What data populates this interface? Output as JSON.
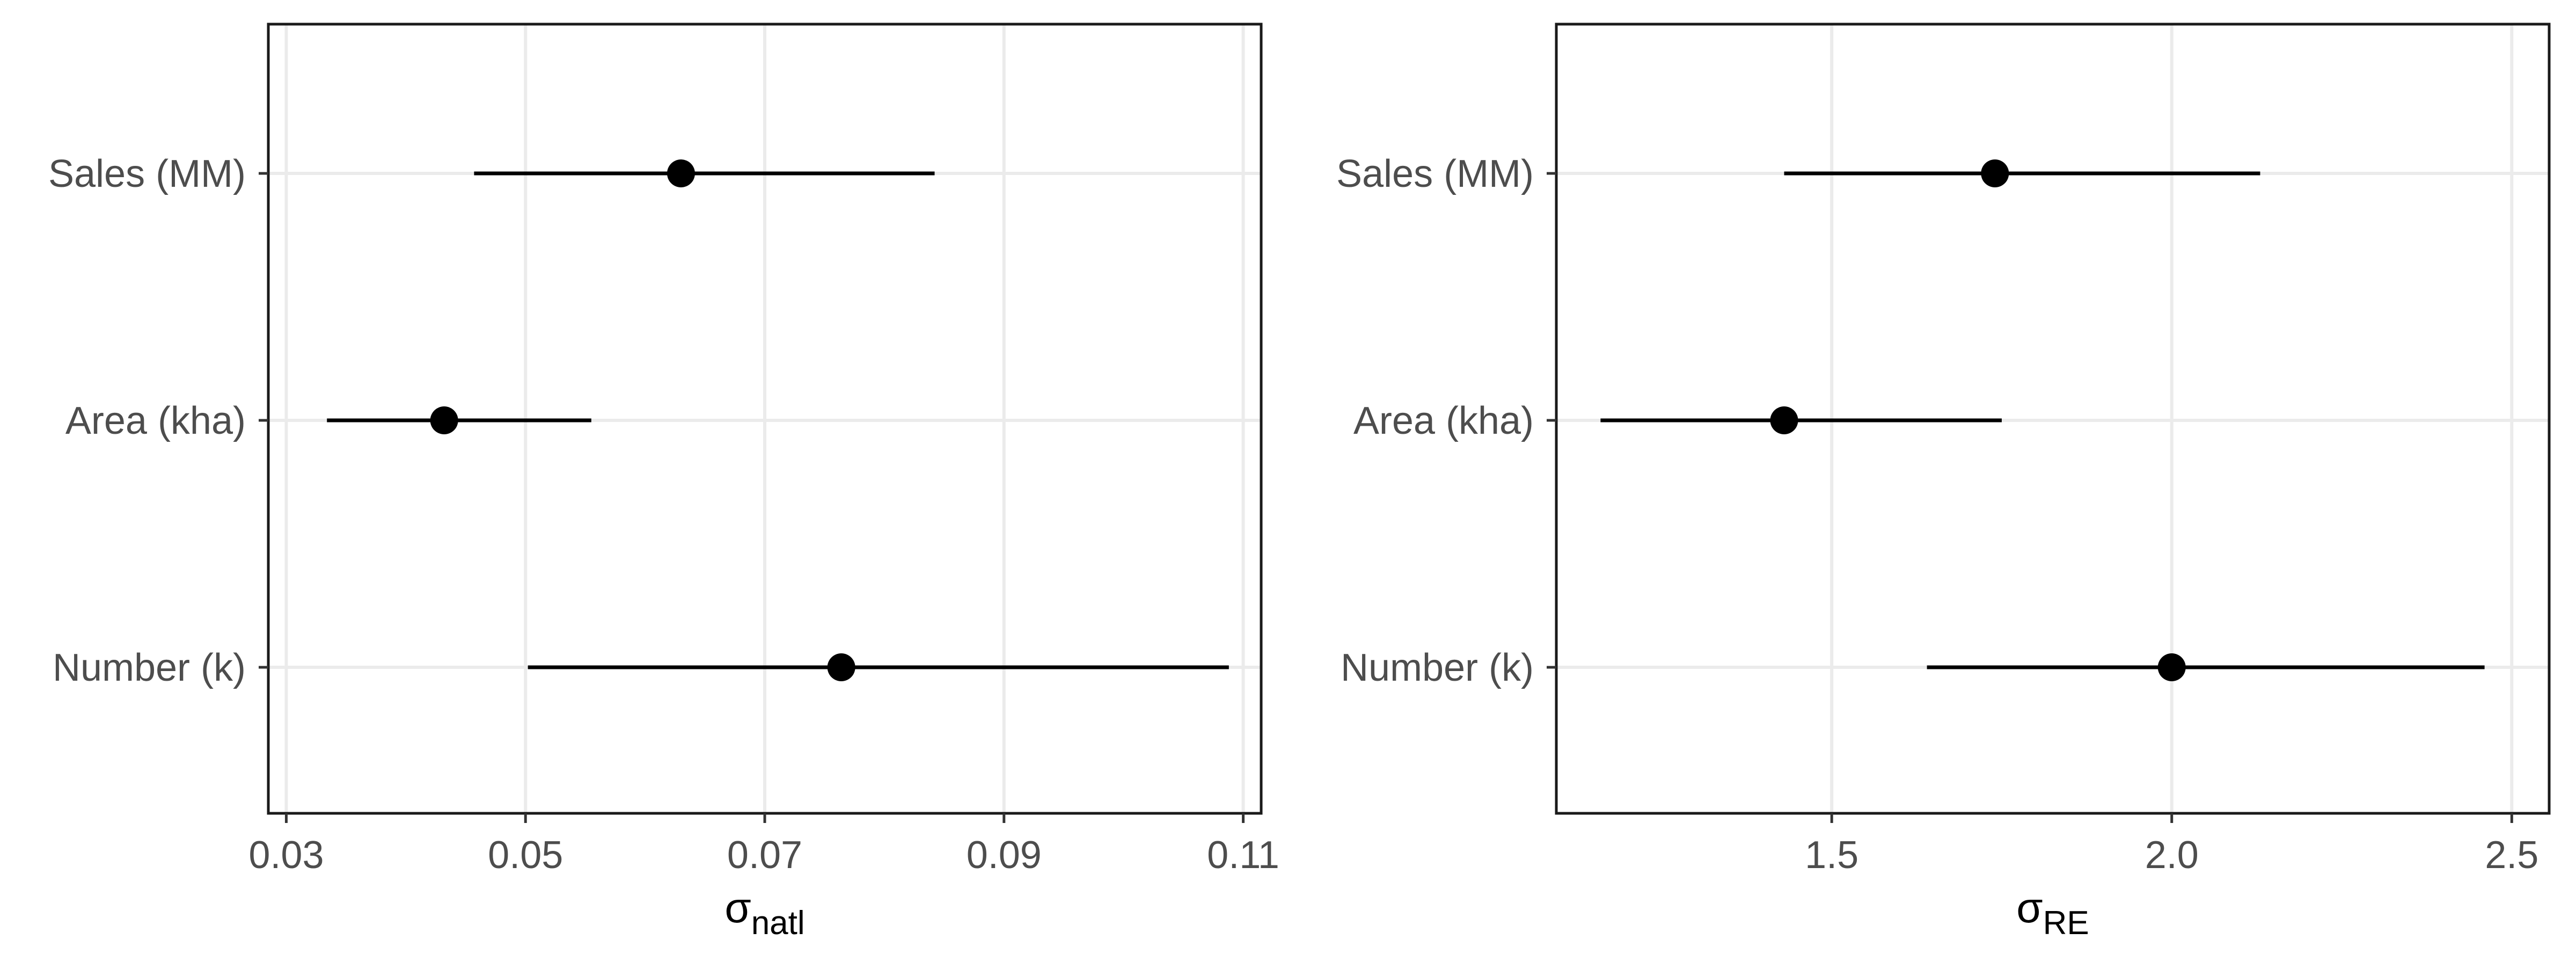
{
  "chart_data": [
    {
      "type": "scatter",
      "subtype": "point-range",
      "title": "",
      "xlabel": "σ",
      "xlabel_subscript": "natl",
      "ylabel": "",
      "xlim": [
        0.0285,
        0.1115
      ],
      "x_ticks": [
        0.03,
        0.05,
        0.07,
        0.09,
        0.11
      ],
      "x_tick_labels": [
        "0.03",
        "0.05",
        "0.07",
        "0.09",
        "0.11"
      ],
      "categories": [
        "Sales (MM)",
        "Area (kha)",
        "Number (k)"
      ],
      "points": [
        {
          "label": "Sales (MM)",
          "x": 0.063,
          "low": 0.0457,
          "high": 0.0842
        },
        {
          "label": "Area (kha)",
          "x": 0.0432,
          "low": 0.0334,
          "high": 0.0555
        },
        {
          "label": "Number (k)",
          "x": 0.0764,
          "low": 0.0502,
          "high": 0.1088
        }
      ],
      "grid": true,
      "legend": "none"
    },
    {
      "type": "scatter",
      "subtype": "point-range",
      "title": "",
      "xlabel": "σ",
      "xlabel_subscript": "RE",
      "ylabel": "",
      "xlim": [
        1.095,
        2.555
      ],
      "x_ticks": [
        1.5,
        2.0,
        2.5
      ],
      "x_tick_labels": [
        "1.5",
        "2.0",
        "2.5"
      ],
      "categories": [
        "Sales (MM)",
        "Area (kha)",
        "Number (k)"
      ],
      "points": [
        {
          "label": "Sales (MM)",
          "x": 1.74,
          "low": 1.43,
          "high": 2.13
        },
        {
          "label": "Area (kha)",
          "x": 1.43,
          "low": 1.16,
          "high": 1.75
        },
        {
          "label": "Number (k)",
          "x": 2.0,
          "low": 1.64,
          "high": 2.46
        }
      ],
      "grid": true,
      "legend": "none"
    }
  ],
  "colors": {
    "background": "#ffffff",
    "grid": "#ebebeb",
    "panel_border": "#1a1a1a",
    "marks": "#000000",
    "tick_label": "#4d4d4d",
    "axis_title": "#000000"
  }
}
